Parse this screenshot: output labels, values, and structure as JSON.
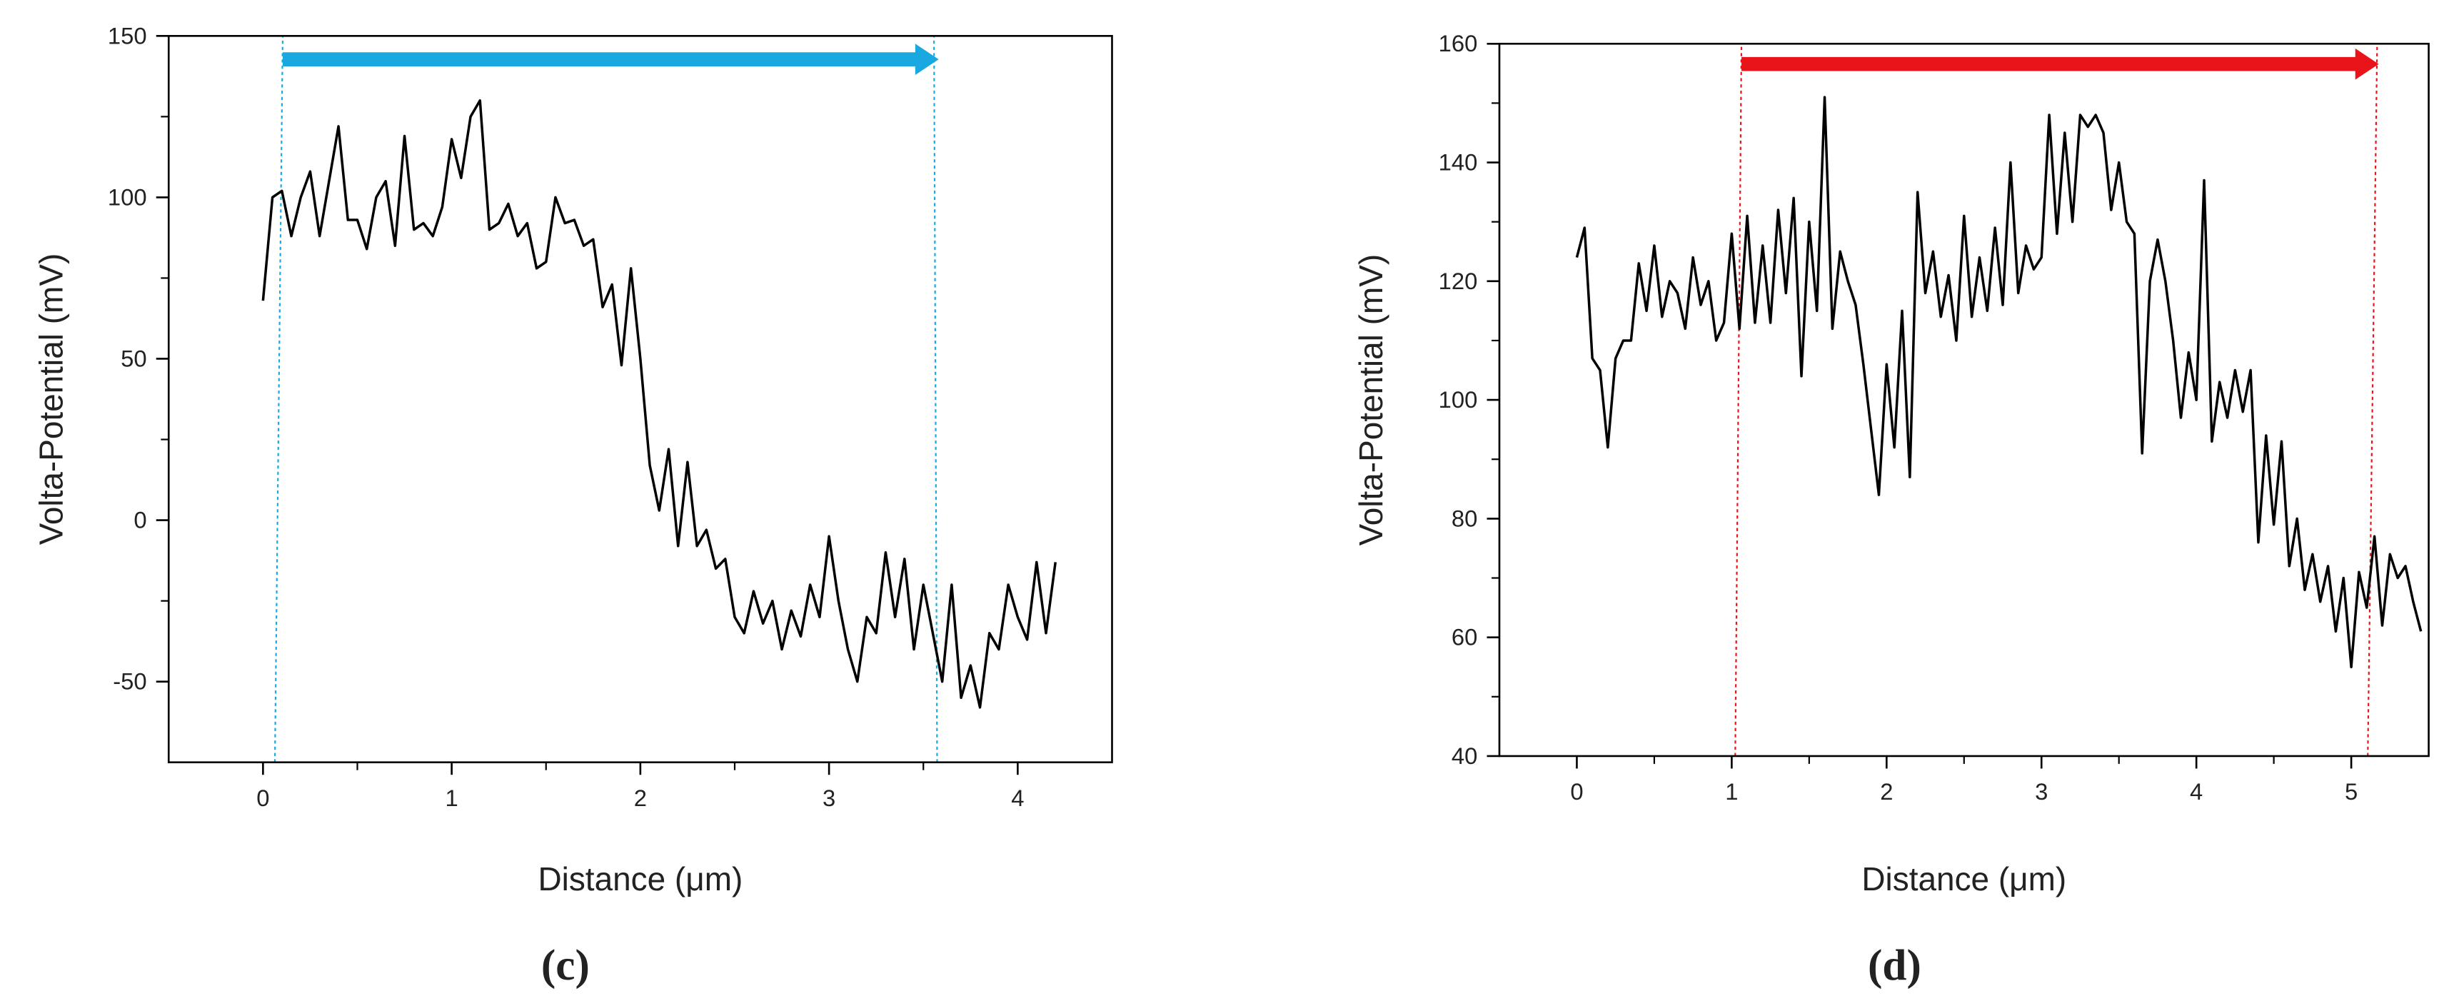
{
  "chart_data": [
    {
      "type": "line",
      "xlabel": "Distance (μm)",
      "ylabel": "Volta-Potential (mV)",
      "panel_label": "(c)",
      "xlim": [
        -0.5,
        4.5
      ],
      "ylim": [
        -75,
        150
      ],
      "xticks": [
        0,
        1,
        2,
        3,
        4
      ],
      "yticks": [
        -50,
        0,
        50,
        100,
        150
      ],
      "color": "#000000",
      "x": [
        0,
        0.05,
        0.1,
        0.15,
        0.2,
        0.25,
        0.3,
        0.35,
        0.4,
        0.45,
        0.5,
        0.55,
        0.6,
        0.65,
        0.7,
        0.75,
        0.8,
        0.85,
        0.9,
        0.95,
        1,
        1.05,
        1.1,
        1.15,
        1.2,
        1.25,
        1.3,
        1.35,
        1.4,
        1.45,
        1.5,
        1.55,
        1.6,
        1.65,
        1.7,
        1.75,
        1.8,
        1.85,
        1.9,
        1.95,
        2,
        2.05,
        2.1,
        2.15,
        2.2,
        2.25,
        2.3,
        2.35,
        2.4,
        2.45,
        2.5,
        2.55,
        2.6,
        2.65,
        2.7,
        2.75,
        2.8,
        2.85,
        2.9,
        2.95,
        3,
        3.05,
        3.1,
        3.15,
        3.2,
        3.25,
        3.3,
        3.35,
        3.4,
        3.45,
        3.5,
        3.55,
        3.6,
        3.65,
        3.7,
        3.75,
        3.8,
        3.85,
        3.9,
        3.95,
        4,
        4.05,
        4.1,
        4.15,
        4.2
      ],
      "values": [
        68,
        100,
        102,
        88,
        100,
        108,
        88,
        105,
        122,
        93,
        93,
        84,
        100,
        105,
        85,
        119,
        90,
        92,
        88,
        97,
        118,
        106,
        125,
        130,
        90,
        92,
        98,
        88,
        92,
        78,
        80,
        100,
        92,
        93,
        85,
        87,
        66,
        73,
        48,
        78,
        50,
        17,
        3,
        22,
        -8,
        18,
        -8,
        -3,
        -15,
        -12,
        -30,
        -35,
        -22,
        -32,
        -25,
        -40,
        -28,
        -36,
        -20,
        -30,
        -5,
        -25,
        -40,
        -50,
        -30,
        -35,
        -10,
        -30,
        -12,
        -40,
        -20,
        -35,
        -50,
        -20,
        -55,
        -45,
        -58,
        -35,
        -40,
        -20,
        -30,
        -37,
        -13,
        -35,
        -13
      ]
    },
    {
      "type": "line",
      "xlabel": "Distance (μm)",
      "ylabel": "Volta-Potential (mV)",
      "panel_label": "(d)",
      "xlim": [
        -0.5,
        5.5
      ],
      "ylim": [
        40,
        160
      ],
      "xticks": [
        0,
        1,
        2,
        3,
        4,
        5
      ],
      "yticks": [
        40,
        60,
        80,
        100,
        120,
        140,
        160
      ],
      "color": "#000000",
      "x": [
        0,
        0.05,
        0.1,
        0.15,
        0.2,
        0.25,
        0.3,
        0.35,
        0.4,
        0.45,
        0.5,
        0.55,
        0.6,
        0.65,
        0.7,
        0.75,
        0.8,
        0.85,
        0.9,
        0.95,
        1,
        1.05,
        1.1,
        1.15,
        1.2,
        1.25,
        1.3,
        1.35,
        1.4,
        1.45,
        1.5,
        1.55,
        1.6,
        1.65,
        1.7,
        1.75,
        1.8,
        1.85,
        1.9,
        1.95,
        2,
        2.05,
        2.1,
        2.15,
        2.2,
        2.25,
        2.3,
        2.35,
        2.4,
        2.45,
        2.5,
        2.55,
        2.6,
        2.65,
        2.7,
        2.75,
        2.8,
        2.85,
        2.9,
        2.95,
        3,
        3.05,
        3.1,
        3.15,
        3.2,
        3.25,
        3.3,
        3.35,
        3.4,
        3.45,
        3.5,
        3.55,
        3.6,
        3.65,
        3.7,
        3.75,
        3.8,
        3.85,
        3.9,
        3.95,
        4,
        4.05,
        4.1,
        4.15,
        4.2,
        4.25,
        4.3,
        4.35,
        4.4,
        4.45,
        4.5,
        4.55,
        4.6,
        4.65,
        4.7,
        4.75,
        4.8,
        4.85,
        4.9,
        4.95,
        5,
        5.05,
        5.1,
        5.15,
        5.2,
        5.25,
        5.3,
        5.35,
        5.4,
        5.45
      ],
      "values": [
        124,
        129,
        107,
        105,
        92,
        107,
        110,
        110,
        123,
        115,
        126,
        114,
        120,
        118,
        112,
        124,
        116,
        120,
        110,
        113,
        128,
        112,
        131,
        113,
        126,
        113,
        132,
        118,
        134,
        104,
        130,
        115,
        151,
        112,
        125,
        120,
        116,
        106,
        95,
        84,
        106,
        92,
        115,
        87,
        135,
        118,
        125,
        114,
        121,
        110,
        131,
        114,
        124,
        115,
        129,
        116,
        140,
        118,
        126,
        122,
        124,
        148,
        128,
        145,
        130,
        148,
        146,
        148,
        145,
        132,
        140,
        130,
        128,
        91,
        120,
        127,
        120,
        110,
        97,
        108,
        100,
        137,
        93,
        103,
        97,
        105,
        98,
        105,
        76,
        94,
        79,
        93,
        72,
        80,
        68,
        74,
        66,
        72,
        61,
        70,
        55,
        71,
        65,
        77,
        62,
        74,
        70,
        72,
        66,
        61
      ]
    }
  ]
}
